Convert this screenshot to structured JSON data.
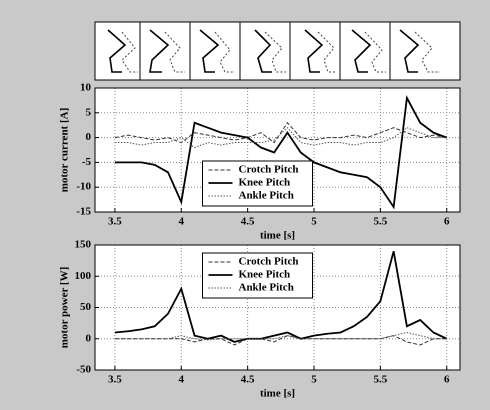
{
  "chart_data": [
    {
      "type": "line",
      "xlabel": "time [s]",
      "ylabel": "motor current [A]",
      "x": [
        3.5,
        3.6,
        3.7,
        3.8,
        3.9,
        4.0,
        4.1,
        4.2,
        4.3,
        4.4,
        4.5,
        4.6,
        4.7,
        4.8,
        4.9,
        5.0,
        5.1,
        5.2,
        5.3,
        5.4,
        5.5,
        5.6,
        5.7,
        5.8,
        5.9,
        6.0
      ],
      "xlim": [
        3.35,
        6.1
      ],
      "xticks": [
        3.5,
        4,
        4.5,
        5,
        5.5,
        6
      ],
      "ylim": [
        -15,
        10
      ],
      "yticks": [
        -15,
        -10,
        -5,
        0,
        5,
        10
      ],
      "grid": true,
      "legend": "lower center",
      "series": [
        {
          "name": "Crotch Pitch",
          "color": "#333333",
          "linestyle": "dashed",
          "values": [
            0,
            0.5,
            0,
            -0.5,
            0,
            -1,
            1,
            0.5,
            0,
            -0.5,
            0,
            1,
            -1,
            3,
            0,
            -0.5,
            0,
            0,
            0.5,
            0,
            1,
            2,
            1,
            0,
            0.5,
            0
          ]
        },
        {
          "name": "Knee Pitch",
          "color": "#000000",
          "linestyle": "solid",
          "values": [
            -5,
            -5,
            -5,
            -5.5,
            -7,
            -13,
            3,
            2,
            1,
            0.5,
            0,
            -2,
            -3,
            1,
            -3,
            -5,
            -6,
            -7,
            -7.5,
            -8,
            -10,
            -14,
            8,
            3,
            1,
            0
          ]
        },
        {
          "name": "Ankle Pitch",
          "color": "#555555",
          "linestyle": "dotted",
          "values": [
            -1,
            -1,
            -1.5,
            -1,
            -1,
            0,
            -2,
            -1,
            -1.5,
            -1,
            -1,
            -1,
            -0.5,
            2,
            -1,
            -1.5,
            -1,
            -1,
            -1.5,
            -1,
            -1,
            0,
            2,
            1,
            0,
            0
          ]
        }
      ]
    },
    {
      "type": "line",
      "xlabel": "time [s]",
      "ylabel": "motor power [W]",
      "x": [
        3.5,
        3.6,
        3.7,
        3.8,
        3.9,
        4.0,
        4.1,
        4.2,
        4.3,
        4.4,
        4.5,
        4.6,
        4.7,
        4.8,
        4.9,
        5.0,
        5.1,
        5.2,
        5.3,
        5.4,
        5.5,
        5.6,
        5.7,
        5.8,
        5.9,
        6.0
      ],
      "xlim": [
        3.35,
        6.1
      ],
      "xticks": [
        3.5,
        4,
        4.5,
        5,
        5.5,
        6
      ],
      "ylim": [
        -50,
        150
      ],
      "yticks": [
        -50,
        0,
        50,
        100,
        150
      ],
      "grid": true,
      "legend": "upper center",
      "series": [
        {
          "name": "Crotch Pitch",
          "color": "#333333",
          "linestyle": "dashed",
          "values": [
            0,
            0,
            0,
            0,
            0,
            0,
            -5,
            0,
            0,
            -10,
            0,
            0,
            -5,
            5,
            0,
            0,
            0,
            0,
            0,
            0,
            0,
            5,
            -5,
            -10,
            0,
            0
          ]
        },
        {
          "name": "Knee Pitch",
          "color": "#000000",
          "linestyle": "solid",
          "values": [
            10,
            12,
            15,
            20,
            40,
            80,
            5,
            0,
            5,
            -5,
            0,
            0,
            5,
            10,
            0,
            5,
            8,
            10,
            20,
            35,
            60,
            140,
            20,
            30,
            10,
            0
          ]
        },
        {
          "name": "Ankle Pitch",
          "color": "#555555",
          "linestyle": "dotted",
          "values": [
            0,
            0,
            0,
            0,
            0,
            5,
            0,
            -2,
            0,
            0,
            0,
            0,
            0,
            5,
            0,
            0,
            0,
            0,
            0,
            0,
            0,
            5,
            10,
            5,
            0,
            0
          ]
        }
      ]
    }
  ]
}
